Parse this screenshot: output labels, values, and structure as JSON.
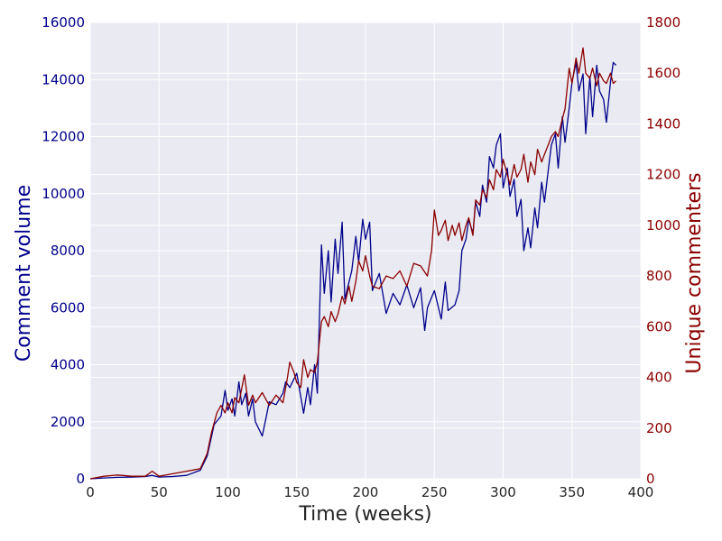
{
  "chart_data": {
    "type": "line",
    "title": "",
    "xlabel": "Time (weeks)",
    "ylabel_left": "Comment volume",
    "ylabel_right": "Unique commenters",
    "xlim": [
      0,
      400
    ],
    "ylim_left": [
      0,
      16000
    ],
    "ylim_right": [
      0,
      1800
    ],
    "xticks": [
      "0",
      "50",
      "100",
      "150",
      "200",
      "250",
      "300",
      "350",
      "400"
    ],
    "yticks_left": [
      "0",
      "2000",
      "4000",
      "6000",
      "8000",
      "10000",
      "12000",
      "14000",
      "16000"
    ],
    "yticks_right": [
      "0",
      "200",
      "400",
      "600",
      "800",
      "1000",
      "1200",
      "1400",
      "1600",
      "1800"
    ],
    "grid": true,
    "background": "#eaeaf2",
    "series": [
      {
        "axis": "left",
        "color": "#00008b",
        "x": [
          0,
          10,
          20,
          30,
          40,
          45,
          50,
          60,
          70,
          80,
          85,
          90,
          95,
          98,
          100,
          103,
          105,
          108,
          110,
          113,
          115,
          118,
          120,
          125,
          128,
          130,
          135,
          140,
          142,
          145,
          150,
          155,
          158,
          160,
          163,
          165,
          168,
          170,
          173,
          175,
          178,
          180,
          183,
          185,
          188,
          190,
          193,
          195,
          198,
          200,
          203,
          205,
          210,
          215,
          220,
          225,
          230,
          235,
          240,
          243,
          245,
          250,
          255,
          258,
          260,
          265,
          268,
          270,
          273,
          275,
          278,
          280,
          283,
          285,
          288,
          290,
          293,
          295,
          298,
          300,
          303,
          305,
          308,
          310,
          313,
          315,
          318,
          320,
          323,
          325,
          328,
          330,
          333,
          335,
          338,
          340,
          343,
          345,
          348,
          350,
          353,
          355,
          358,
          360,
          363,
          365,
          368,
          370,
          373,
          375,
          378,
          380,
          382
        ],
        "values": [
          0,
          30,
          50,
          60,
          80,
          120,
          60,
          80,
          120,
          300,
          800,
          1900,
          2200,
          3100,
          2400,
          2800,
          2200,
          3400,
          2600,
          3000,
          2200,
          2800,
          2000,
          1500,
          2200,
          2700,
          2600,
          3000,
          3400,
          3200,
          3700,
          2300,
          3200,
          2600,
          4000,
          3000,
          8200,
          6500,
          8000,
          6200,
          8400,
          7200,
          9000,
          6300,
          6900,
          7300,
          8500,
          7600,
          9100,
          8400,
          9000,
          6600,
          7200,
          5800,
          6500,
          6100,
          6800,
          6000,
          6700,
          5200,
          6000,
          6600,
          5600,
          6900,
          5900,
          6100,
          6600,
          8000,
          8400,
          9100,
          8600,
          9700,
          9200,
          10300,
          9700,
          11300,
          10900,
          11700,
          12100,
          10200,
          10900,
          9900,
          10500,
          9200,
          9800,
          8000,
          8800,
          8100,
          9500,
          8800,
          10400,
          9700,
          10900,
          11700,
          12100,
          10900,
          12700,
          11800,
          13000,
          13900,
          14600,
          13600,
          14200,
          12100,
          14100,
          12700,
          14500,
          13600,
          13300,
          12500,
          13900,
          14600,
          14500
        ]
      },
      {
        "axis": "right",
        "color": "#8b0000",
        "x": [
          0,
          10,
          20,
          30,
          40,
          45,
          50,
          60,
          70,
          80,
          85,
          88,
          92,
          95,
          98,
          100,
          103,
          105,
          108,
          112,
          115,
          118,
          120,
          125,
          128,
          130,
          135,
          140,
          143,
          145,
          148,
          150,
          153,
          155,
          158,
          160,
          163,
          165,
          168,
          170,
          173,
          175,
          178,
          180,
          183,
          185,
          188,
          190,
          193,
          195,
          198,
          200,
          203,
          205,
          210,
          215,
          220,
          225,
          230,
          235,
          240,
          245,
          248,
          250,
          253,
          255,
          258,
          260,
          263,
          265,
          268,
          270,
          273,
          275,
          278,
          280,
          283,
          285,
          288,
          290,
          293,
          295,
          298,
          300,
          303,
          305,
          308,
          310,
          313,
          315,
          318,
          320,
          323,
          325,
          328,
          330,
          333,
          335,
          338,
          340,
          343,
          345,
          348,
          350,
          353,
          355,
          358,
          360,
          363,
          365,
          368,
          370,
          373,
          375,
          378,
          380,
          382
        ],
        "values": [
          0,
          10,
          15,
          10,
          10,
          30,
          10,
          20,
          30,
          40,
          100,
          180,
          260,
          290,
          260,
          300,
          260,
          320,
          300,
          410,
          290,
          330,
          300,
          340,
          310,
          290,
          330,
          300,
          390,
          460,
          420,
          380,
          360,
          470,
          400,
          430,
          420,
          460,
          620,
          640,
          600,
          660,
          620,
          650,
          720,
          690,
          760,
          700,
          780,
          860,
          820,
          880,
          800,
          760,
          750,
          800,
          790,
          820,
          760,
          850,
          840,
          800,
          900,
          1060,
          960,
          980,
          1020,
          940,
          1000,
          960,
          1010,
          940,
          1000,
          1030,
          960,
          1100,
          1080,
          1140,
          1110,
          1180,
          1140,
          1220,
          1190,
          1260,
          1200,
          1160,
          1240,
          1190,
          1220,
          1280,
          1170,
          1250,
          1200,
          1300,
          1250,
          1280,
          1320,
          1350,
          1370,
          1350,
          1420,
          1460,
          1620,
          1560,
          1660,
          1600,
          1700,
          1600,
          1580,
          1620,
          1550,
          1600,
          1570,
          1560,
          1600,
          1560,
          1570
        ]
      }
    ]
  }
}
